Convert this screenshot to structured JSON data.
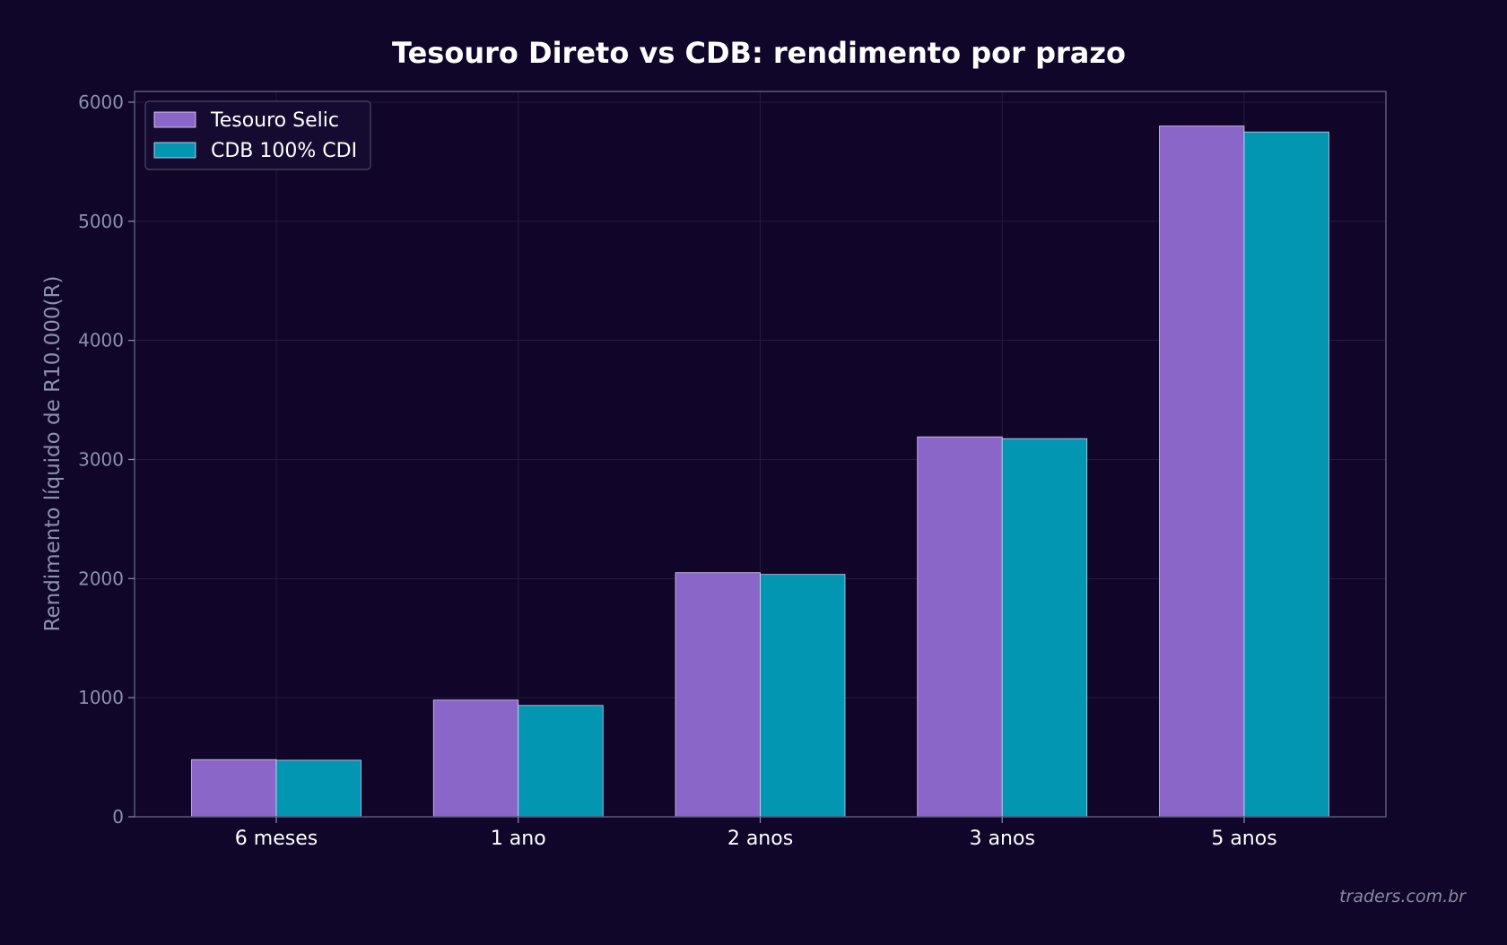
{
  "chart_data": {
    "type": "bar",
    "title": "Tesouro Direto vs CDB: rendimento por prazo",
    "xlabel": "",
    "ylabel": "Rendimento líquido de R10.000(R)",
    "categories": [
      "6 meses",
      "1 ano",
      "2 anos",
      "3 anos",
      "5 anos"
    ],
    "series": [
      {
        "name": "Tesouro Selic",
        "values": [
          480,
          980,
          2050,
          3190,
          5800
        ],
        "color": "#8a66c8"
      },
      {
        "name": "CDB 100% CDI",
        "values": [
          475,
          935,
          2035,
          3175,
          5750
        ],
        "color": "#0396b2"
      }
    ],
    "ylim": [
      0,
      6090
    ],
    "yticks": [
      0,
      1000,
      2000,
      3000,
      4000,
      5000,
      6000
    ],
    "grid": true,
    "legend_position": "top-left"
  },
  "watermark": "traders.com.br",
  "colors": {
    "background": "#10062a",
    "plot_background": "#110629",
    "axis": "#5a5878",
    "grid": "#241a40"
  }
}
